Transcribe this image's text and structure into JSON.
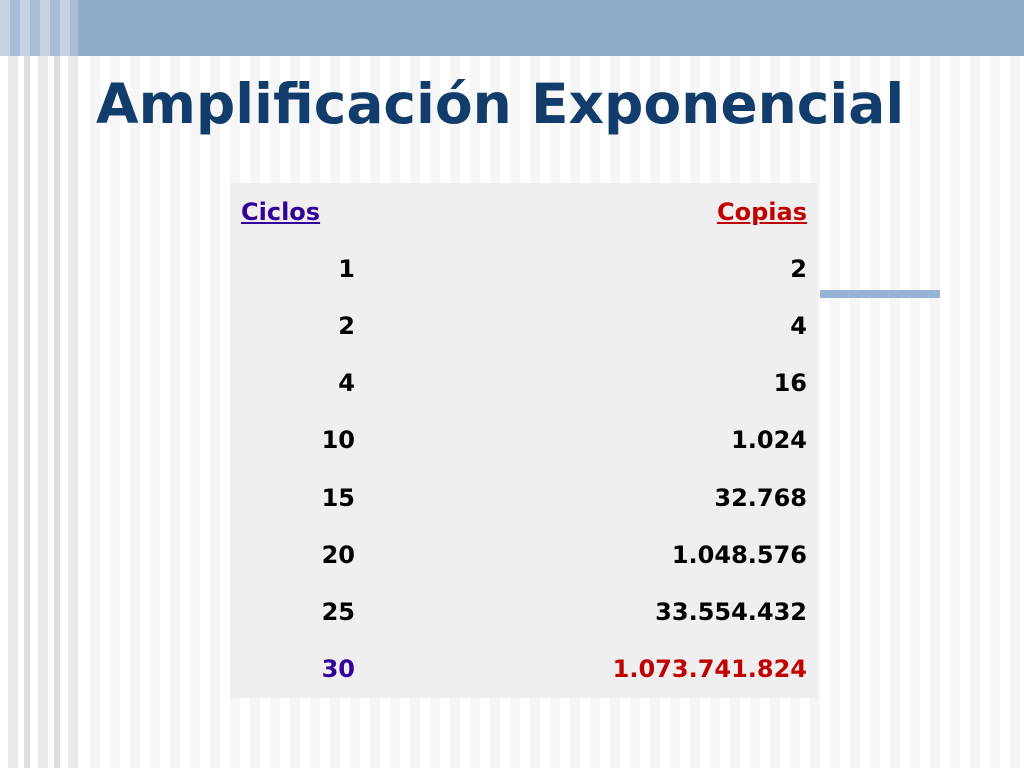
{
  "header": {
    "title": "Amplificación Exponencial"
  },
  "table": {
    "columns": [
      "Ciclos",
      "Copias"
    ],
    "rows": [
      [
        "1",
        "2"
      ],
      [
        "2",
        "4"
      ],
      [
        "4",
        "16"
      ],
      [
        "10",
        "1.024"
      ],
      [
        "15",
        "32.768"
      ],
      [
        "20",
        "1.048.576"
      ],
      [
        "25",
        "33.554.432"
      ],
      [
        "30",
        "1.073.741.824"
      ]
    ]
  }
}
